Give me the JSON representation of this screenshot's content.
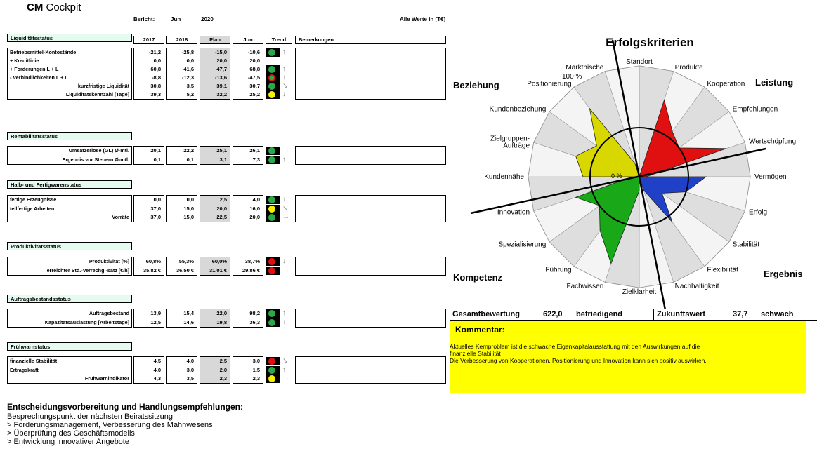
{
  "title_bold": "CM",
  "title_rest": " Cockpit",
  "header": {
    "bericht_label": "Bericht:",
    "month": "Jun",
    "year": "2020",
    "unit_note": "Alle Werte in [T€]"
  },
  "columns": [
    "2017",
    "2018",
    "Plan",
    "Jun",
    "Trend",
    "Bemerkungen"
  ],
  "sections": [
    {
      "title": "Liquiditätsstatus",
      "rows": [
        {
          "label": "Betriebsmittel-Kontostände",
          "align": "left",
          "values": [
            "-21,2",
            "-25,8",
            "-15,0",
            "-10,6"
          ],
          "light": "green",
          "arrow": "↑"
        },
        {
          "label": "+ Kreditlinie",
          "align": "left",
          "values": [
            "0,0",
            "0,0",
            "20,0",
            "20,0"
          ],
          "light": "",
          "arrow": ""
        },
        {
          "label": "+ Forderungen L + L",
          "align": "left",
          "values": [
            "60,8",
            "41,6",
            "47,7",
            "68,8"
          ],
          "light": "green",
          "arrow": "↑"
        },
        {
          "label": "- Verbindlichkeiten L + L",
          "align": "left",
          "values": [
            "-8,8",
            "-12,3",
            "-13,6",
            "-47,5"
          ],
          "light": "mixed",
          "arrow": "↑"
        },
        {
          "label": "kurzfristige Liquidität",
          "align": "right",
          "values": [
            "30,8",
            "3,5",
            "39,1",
            "30,7"
          ],
          "light": "green",
          "arrow": "↘"
        },
        {
          "label": "Liquiditätskennzahl [Tage]",
          "align": "right",
          "values": [
            "39,3",
            "5,2",
            "32,2",
            "25,2"
          ],
          "light": "yellow",
          "arrow": "↓"
        }
      ]
    },
    {
      "title": "Rentabilitätsstatus",
      "rows": [
        {
          "label": "Umsatzerlöse (GL) Ø-mtl.",
          "align": "right",
          "values": [
            "20,1",
            "22,2",
            "25,1",
            "26,1"
          ],
          "light": "green",
          "arrow": "→"
        },
        {
          "label": "Ergebnis vor Steuern Ø-mtl.",
          "align": "right",
          "values": [
            "0,1",
            "0,1",
            "3,1",
            "7,3"
          ],
          "light": "green",
          "arrow": "↑"
        }
      ]
    },
    {
      "title": "Halb- und Fertigwarenstatus",
      "rows": [
        {
          "label": "fertige Erzeugnisse",
          "align": "left",
          "values": [
            "0,0",
            "0,0",
            "2,5",
            "4,0"
          ],
          "light": "green",
          "arrow": "↑"
        },
        {
          "label": "teilfertige Arbeiten",
          "align": "left",
          "values": [
            "37,0",
            "15,0",
            "20,0",
            "16,0"
          ],
          "light": "yellow",
          "arrow": "↘"
        },
        {
          "label": "Vorräte",
          "align": "right",
          "values": [
            "37,0",
            "15,0",
            "22,5",
            "20,0"
          ],
          "light": "green",
          "arrow": "→"
        }
      ]
    },
    {
      "title": "Produktivitätsstatus",
      "rows": [
        {
          "label": "Produktivität [%]",
          "align": "right",
          "values": [
            "60,8%",
            "55,3%",
            "60,0%",
            "38,7%"
          ],
          "light": "red",
          "arrow": "↓"
        },
        {
          "label": "erreichter Std.-Verrechg.-satz [€/h]",
          "align": "right",
          "values": [
            "35,82 €",
            "36,50 €",
            "31,01 €",
            "29,86 €"
          ],
          "light": "red",
          "arrow": "→"
        }
      ]
    },
    {
      "title": "Auftragsbestandsstatus",
      "rows": [
        {
          "label": "Auftragsbestand",
          "align": "right",
          "values": [
            "13,9",
            "15,4",
            "22,0",
            "98,2"
          ],
          "light": "green",
          "arrow": "↑"
        },
        {
          "label": "Kapazitätsauslastung [Arbeitstage]",
          "align": "right",
          "values": [
            "12,5",
            "14,6",
            "19,8",
            "36,3"
          ],
          "light": "green",
          "arrow": "↑"
        }
      ]
    },
    {
      "title": "Frühwarnstatus",
      "rows": [
        {
          "label": "finanzielle Stabilität",
          "align": "left",
          "values": [
            "4,5",
            "4,0",
            "2,5",
            "3,0"
          ],
          "light": "red",
          "arrow": "↘"
        },
        {
          "label": "Ertragskraft",
          "align": "left",
          "values": [
            "4,0",
            "3,0",
            "2,0",
            "1,5"
          ],
          "light": "green",
          "arrow": "↑"
        },
        {
          "label": "Frühwarnindikator",
          "align": "right",
          "values": [
            "4,3",
            "3,5",
            "2,3",
            "2,3"
          ],
          "light": "yellow",
          "arrow": "→"
        }
      ]
    }
  ],
  "radar": {
    "title": "Erfolgskriterien",
    "quadrants": [
      "Beziehung",
      "Leistung",
      "Kompetenz",
      "Ergebnis"
    ],
    "axis_labels": [
      "Standort",
      "Produkte",
      "Kooperation",
      "Empfehlungen",
      "Wertschöpfung",
      "Vermögen",
      "Erfolg",
      "Stabilität",
      "Flexibilität",
      "Nachhaltigkeit",
      "Zielklarheit",
      "Fachwissen",
      "Führung",
      "Spezialisierung",
      "Innovation",
      "Kundennähe",
      "Zielgruppen-\nAufträge",
      "Kundenbeziehung",
      "Positionierung",
      "Marktnische"
    ],
    "scale_max_label": "100 %",
    "scale_zero_label": "0 %"
  },
  "summary": {
    "gesamt_label": "Gesamtbewertung",
    "gesamt_value": "622,0",
    "gesamt_rating": "befriedigend",
    "zukunft_label": "Zukunftswert",
    "zukunft_value": "37,7",
    "zukunft_rating": "schwach"
  },
  "comment": {
    "title": "Kommentar:",
    "line1": "Aktuelles Kernproblem ist die schwache Eigenkapitalausstattung mit den Auswirkungen auf die",
    "line2": "finanzielle Stabilität",
    "line3": "Die Verbesserung von Kooperationen, Positionierung und Innovation kann sich positiv auswirken."
  },
  "recommendations": {
    "heading": "Entscheidungsvorbereitung und Handlungsempfehlungen:",
    "items": [
      "Besprechungspunkt der nächsten Beiratssitzung",
      "> Forderungsmanagement, Verbesserung des Mahnwesens",
      "> Überprüfung des Geschäftsmodells",
      "> Entwicklung innovativer Angebote"
    ]
  },
  "colors": {
    "green": "#2aa84a",
    "yellow": "#f5f000",
    "red": "#e01010",
    "section_bg": "#e6fbf0",
    "comment_bg": "#ffff00"
  }
}
